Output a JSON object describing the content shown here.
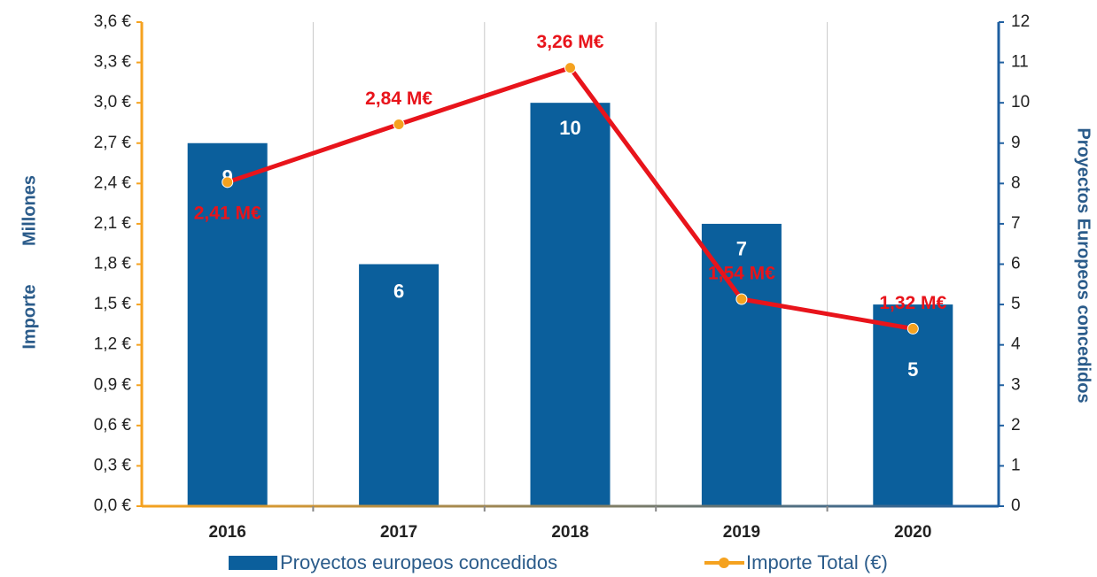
{
  "chart_data": {
    "type": "bar",
    "categories": [
      "2016",
      "2017",
      "2018",
      "2019",
      "2020"
    ],
    "ylabel": "Importe",
    "ylabel_unit": "Millones",
    "y2label": "Proyectos Europeos concedidos",
    "ylim": [
      0,
      3.6
    ],
    "yticks": [
      {
        "value": 0,
        "label": "0,0 €"
      },
      {
        "value": 0.3,
        "label": "0,3 €"
      },
      {
        "value": 0.6,
        "label": "0,6 €"
      },
      {
        "value": 0.9,
        "label": "0,9 €"
      },
      {
        "value": 1.2,
        "label": "1,2 €"
      },
      {
        "value": 1.5,
        "label": "1,5 €"
      },
      {
        "value": 1.8,
        "label": "1,8 €"
      },
      {
        "value": 2.1,
        "label": "2,1 €"
      },
      {
        "value": 2.4,
        "label": "2,4 €"
      },
      {
        "value": 2.7,
        "label": "2,7 €"
      },
      {
        "value": 3.0,
        "label": "3,0 €"
      },
      {
        "value": 3.3,
        "label": "3,3 €"
      },
      {
        "value": 3.6,
        "label": "3,6 €"
      }
    ],
    "y2lim": [
      0,
      12
    ],
    "y2ticks": [
      0,
      1,
      2,
      3,
      4,
      5,
      6,
      7,
      8,
      9,
      10,
      11,
      12
    ],
    "series": [
      {
        "name": "Proyectos europeos concedidos",
        "type": "bar",
        "axis": "y2",
        "color": "#0b5f9c",
        "values": [
          9,
          6,
          10,
          7,
          5
        ]
      },
      {
        "name": "Importe Total (€)",
        "type": "line",
        "axis": "y",
        "color": "#e8141b",
        "marker_color": "#f5a21f",
        "values": [
          2.41,
          2.84,
          3.26,
          1.54,
          1.32
        ],
        "value_labels": [
          "2,41 M€",
          "2,84 M€",
          "3,26 M€",
          "1,54 M€",
          "1,32 M€"
        ]
      }
    ],
    "legend": "bottom"
  }
}
